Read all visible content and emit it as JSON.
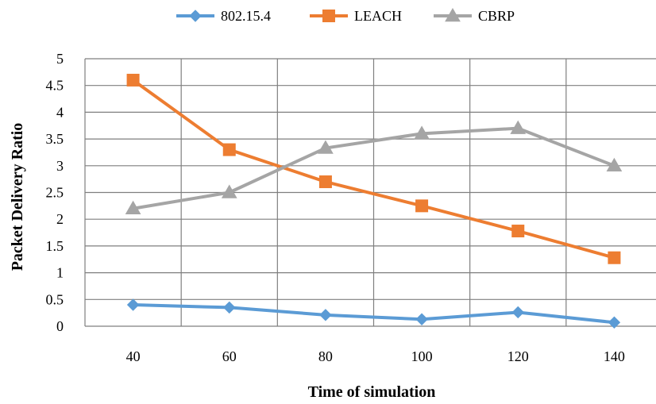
{
  "chart_data": {
    "type": "line",
    "title": "",
    "xlabel": "Time of simulation",
    "ylabel": "Packet Delivery Ratio",
    "categories": [
      "40",
      "60",
      "80",
      "100",
      "120",
      "140"
    ],
    "ylim": [
      0,
      5
    ],
    "yticks": [
      "0",
      "0.5",
      "1",
      "1.5",
      "2",
      "2.5",
      "3",
      "3.5",
      "4",
      "4.5",
      "5"
    ],
    "grid": true,
    "legend_position": "top",
    "series": [
      {
        "name": "802.15.4",
        "color": "#5B9BD5",
        "marker": "diamond",
        "values": [
          0.4,
          0.35,
          0.21,
          0.13,
          0.26,
          0.07
        ]
      },
      {
        "name": "LEACH",
        "color": "#ED7D31",
        "marker": "square",
        "values": [
          4.6,
          3.3,
          2.7,
          2.25,
          1.78,
          1.28
        ]
      },
      {
        "name": "CBRP",
        "color": "#A5A5A5",
        "marker": "triangle",
        "values": [
          2.2,
          2.5,
          3.33,
          3.6,
          3.7,
          3.0
        ]
      }
    ]
  }
}
